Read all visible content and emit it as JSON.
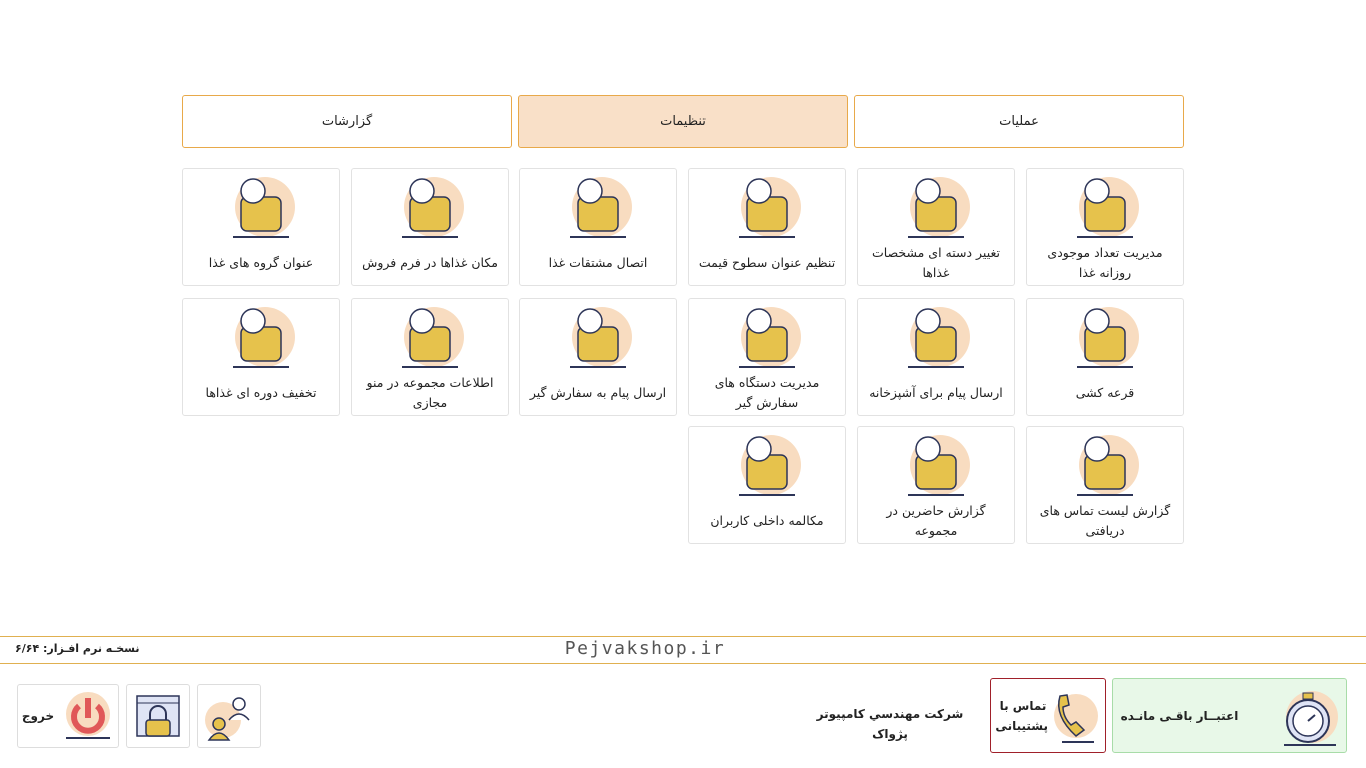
{
  "tabs": [
    {
      "label": "عملیات"
    },
    {
      "label": "تنظیمات",
      "active": true
    },
    {
      "label": "گزارشات"
    }
  ],
  "cards": [
    {
      "label": "مدیریت تعداد موجودی روزانه غذا",
      "icon": "chicken-100-icon"
    },
    {
      "label": "تغییر دسته ای مشخصات غذاها",
      "icon": "chicken-gear-icon"
    },
    {
      "label": "تنظیم عنوان سطوح قیمت",
      "icon": "price-levels-icon"
    },
    {
      "label": "اتصال مشتقات غذا",
      "icon": "fries-drink-icon"
    },
    {
      "label": "مکان غذاها در فرم فروش",
      "icon": "layout-icon"
    },
    {
      "label": "عنوان گروه های غذا",
      "icon": "chicken-title-icon"
    },
    {
      "label": "قرعه کشی",
      "icon": "lottery-icon"
    },
    {
      "label": "ارسال پیام برای آشپزخانه",
      "icon": "envelope-arrow-icon"
    },
    {
      "label": "مدیریت دستگاه های سفارش گیر",
      "icon": "pos-device-icon"
    },
    {
      "label": "ارسال پیام به سفارش گیر",
      "icon": "waiter-message-icon"
    },
    {
      "label": "اطلاعات مجموعه در منو مجازی",
      "icon": "building-info-icon"
    },
    {
      "label": "تخفیف دوره ای غذاها",
      "icon": "chicken-discount-icon"
    },
    {
      "label": "گزارش لیست تماس های دریافتی",
      "icon": "call-list-icon"
    },
    {
      "label": "گزارش حاضرین در مجموعه",
      "icon": "attendance-icon"
    },
    {
      "label": "مکالمه داخلی کاربران",
      "icon": "chat-users-icon"
    }
  ],
  "footer": {
    "version": "نسخـه نرم افـزار: ۶/۶۴",
    "site": "Pejvakshop.ir",
    "credit": "اعتبــار باقـی مانـده",
    "support": "تماس با پشتیبانی",
    "company": "شرکت مهندسي کامپيوتر پژواک",
    "exit": "خروج"
  },
  "colors": {
    "accent": "#e8a94a",
    "active_tab": "#f9e0c8",
    "icon_yellow": "#e6c24c",
    "icon_peach": "#f8dcc0",
    "icon_navy": "#2d3558",
    "credit_bg": "#e8f8e8",
    "support_border": "#a0202a"
  }
}
